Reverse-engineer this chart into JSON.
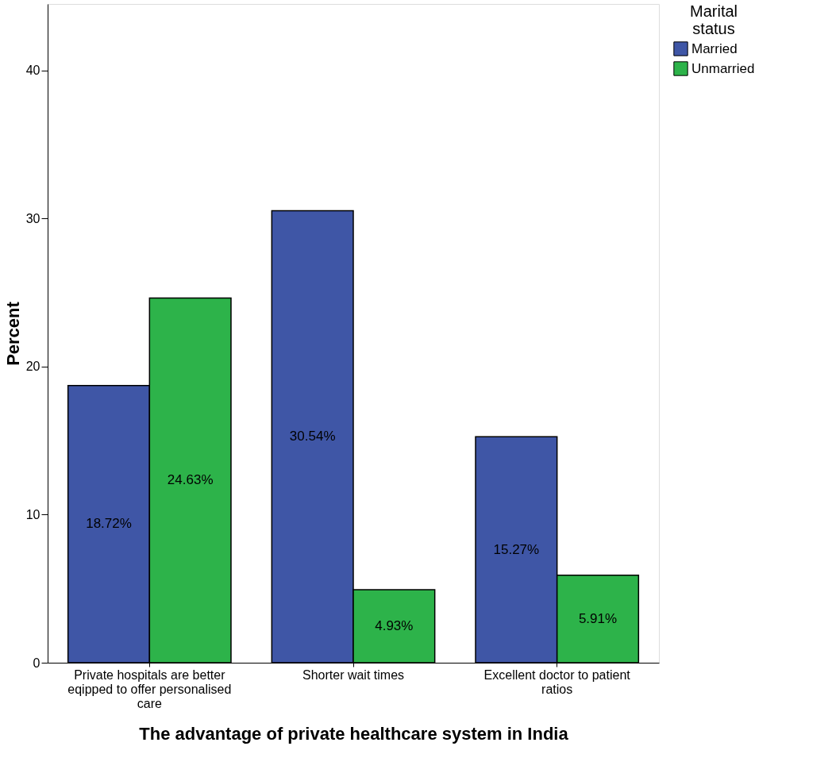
{
  "chart_data": {
    "type": "bar",
    "xlabel": "The advantage of private healthcare system in India",
    "ylabel": "Percent",
    "legend_title": "Marital status",
    "legend": "top right",
    "grid": false,
    "categories": [
      "Private hospitals are better eqipped to offer personalised care",
      "Shorter wait times",
      "Excellent doctor to patient ratios"
    ],
    "series": [
      {
        "name": "Married",
        "color": "#3f56a6",
        "values": [
          18.72,
          30.54,
          15.27
        ],
        "value_labels": [
          "18.72%",
          "30.54%",
          "15.27%"
        ]
      },
      {
        "name": "Unmarried",
        "color": "#2db34a",
        "values": [
          24.63,
          4.93,
          5.91
        ],
        "value_labels": [
          "24.63%",
          "4.93%",
          "5.91%"
        ]
      }
    ],
    "ylim": [
      0,
      44.5
    ],
    "yticks": [
      0,
      10,
      20,
      30,
      40
    ]
  }
}
